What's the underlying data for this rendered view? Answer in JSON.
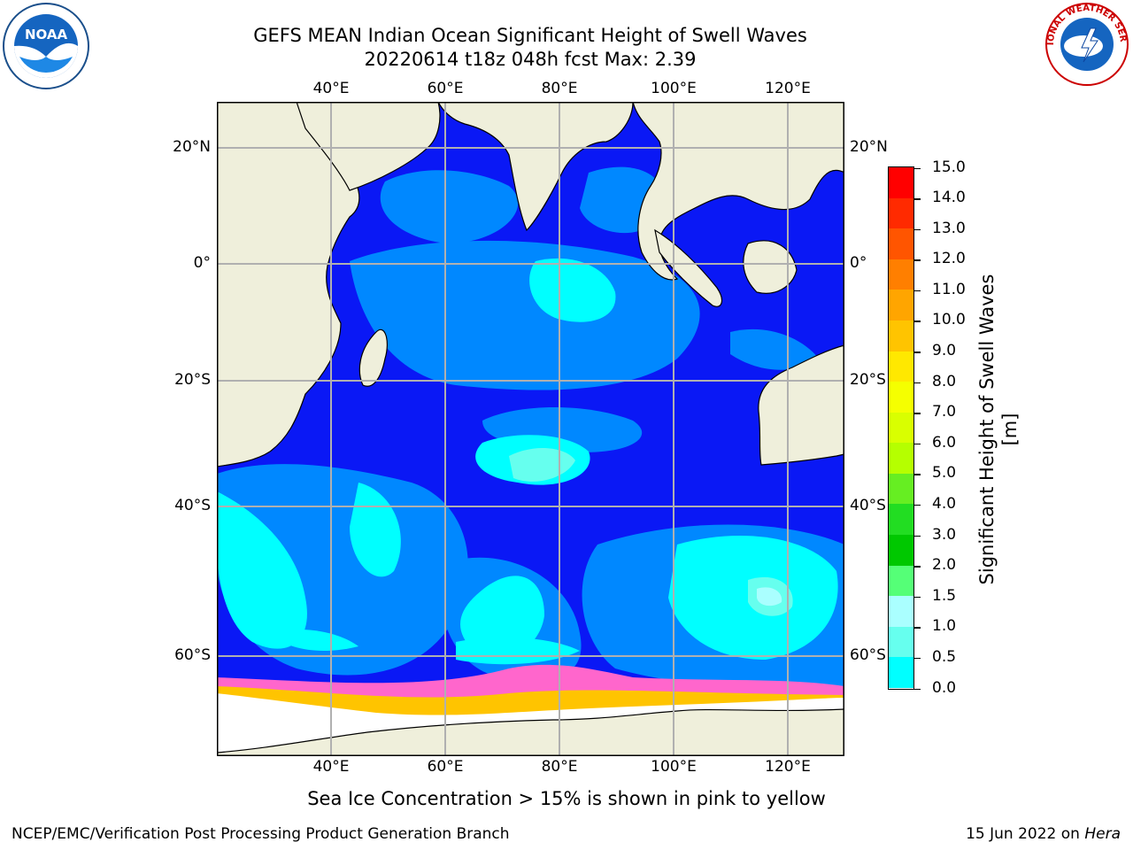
{
  "title": {
    "line1": "GEFS MEAN Indian Ocean Significant Height of Swell Waves",
    "line2": "20220614 t18z 048h fcst   Max: 2.39"
  },
  "map": {
    "lon_ticks": [
      "40°E",
      "60°E",
      "80°E",
      "100°E",
      "120°E"
    ],
    "lat_ticks": [
      "20°N",
      "0°",
      "20°S",
      "40°S",
      "60°S"
    ],
    "lon_range": [
      20,
      130
    ],
    "lat_range": [
      -70,
      26
    ],
    "grid": true
  },
  "colorbar": {
    "title": "Significant Height of Swell Waves [m]",
    "labels": [
      "15.0",
      "14.0",
      "13.0",
      "12.0",
      "11.0",
      "10.0",
      "9.0",
      "8.0",
      "7.0",
      "6.0",
      "5.0",
      "4.0",
      "3.0",
      "2.0",
      "1.5",
      "1.0",
      "0.5",
      "0.0"
    ],
    "colors": [
      "#ff0000",
      "#ff2a00",
      "#ff5500",
      "#ff7f00",
      "#ffa500",
      "#ffc400",
      "#ffe800",
      "#f5ff00",
      "#d9ff00",
      "#b5ff00",
      "#66ee22",
      "#22dd22",
      "#00c800",
      "#55ff77",
      "#aaffff",
      "#66ffee",
      "#00ffff",
      "#0088ff",
      "#0000ff"
    ]
  },
  "caption": "Sea Ice Concentration > 15% is shown in pink to yellow",
  "footer": {
    "left": "NCEP/EMC/Verification Post Processing Product Generation Branch",
    "right_date": "15 Jun 2022 on ",
    "right_host": "Hera"
  },
  "logos": {
    "left": "NOAA",
    "right": "NATIONAL WEATHER SERVICE"
  }
}
